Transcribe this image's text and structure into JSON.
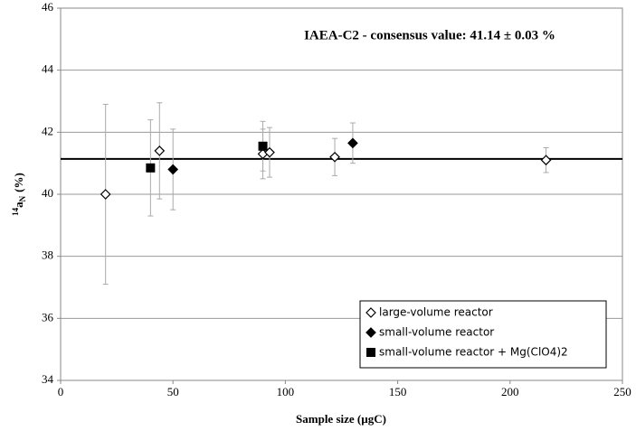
{
  "chart_data": {
    "type": "scatter",
    "annotation": "IAEA-C2 - consensus value: 41.14 ± 0.03 %",
    "hline": 41.14,
    "xlabel": "Sample size (µgC)",
    "ylabel_parts": [
      "14",
      "a",
      "N",
      "(%)"
    ],
    "xlim": [
      0,
      250
    ],
    "xticks": [
      0,
      50,
      100,
      150,
      200,
      250
    ],
    "ylim": [
      34,
      46
    ],
    "yticks": [
      34,
      36,
      38,
      40,
      42,
      44,
      46
    ],
    "grid": true,
    "legend": "lower right",
    "series": [
      {
        "name": "large-volume reactor",
        "color": "#000000",
        "marker": "diamond-open",
        "x": [
          20,
          44,
          90,
          93,
          122,
          216
        ],
        "values": [
          40.0,
          41.4,
          41.3,
          41.35,
          41.2,
          41.1
        ],
        "errors": [
          2.9,
          1.55,
          0.8,
          0.8,
          0.6,
          0.4
        ]
      },
      {
        "name": "small-volume reactor",
        "color": "#000000",
        "marker": "diamond",
        "x": [
          50,
          130
        ],
        "values": [
          40.8,
          41.65
        ],
        "errors": [
          1.3,
          0.65
        ]
      },
      {
        "name": "small-volume reactor + Mg(ClO4)2",
        "color": "#000000",
        "marker": "square",
        "x": [
          40,
          90
        ],
        "values": [
          40.85,
          41.55
        ],
        "errors": [
          1.55,
          0.8
        ]
      }
    ]
  }
}
